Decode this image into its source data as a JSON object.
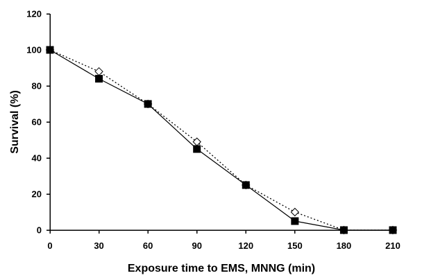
{
  "chart_data": {
    "type": "line",
    "title": "",
    "xlabel": "Exposure time to EMS, MNNG (min)",
    "ylabel": "Survival (%)",
    "x": [
      0,
      30,
      60,
      90,
      120,
      150,
      180,
      210
    ],
    "xlim": [
      0,
      210
    ],
    "ylim": [
      0,
      120
    ],
    "xticks": [
      0,
      30,
      60,
      90,
      120,
      150,
      180,
      210
    ],
    "yticks": [
      0,
      20,
      40,
      60,
      80,
      100,
      120
    ],
    "grid": false,
    "legend": "none",
    "series": [
      {
        "values": [
          100,
          84,
          70,
          45,
          25,
          5,
          0,
          0
        ],
        "marker": "filled-square",
        "line": "solid",
        "color": "#000000"
      },
      {
        "values": [
          100,
          88,
          70,
          49,
          25,
          10,
          0,
          0
        ],
        "marker": "open-diamond",
        "line": "dotted",
        "color": "#000000"
      }
    ]
  }
}
